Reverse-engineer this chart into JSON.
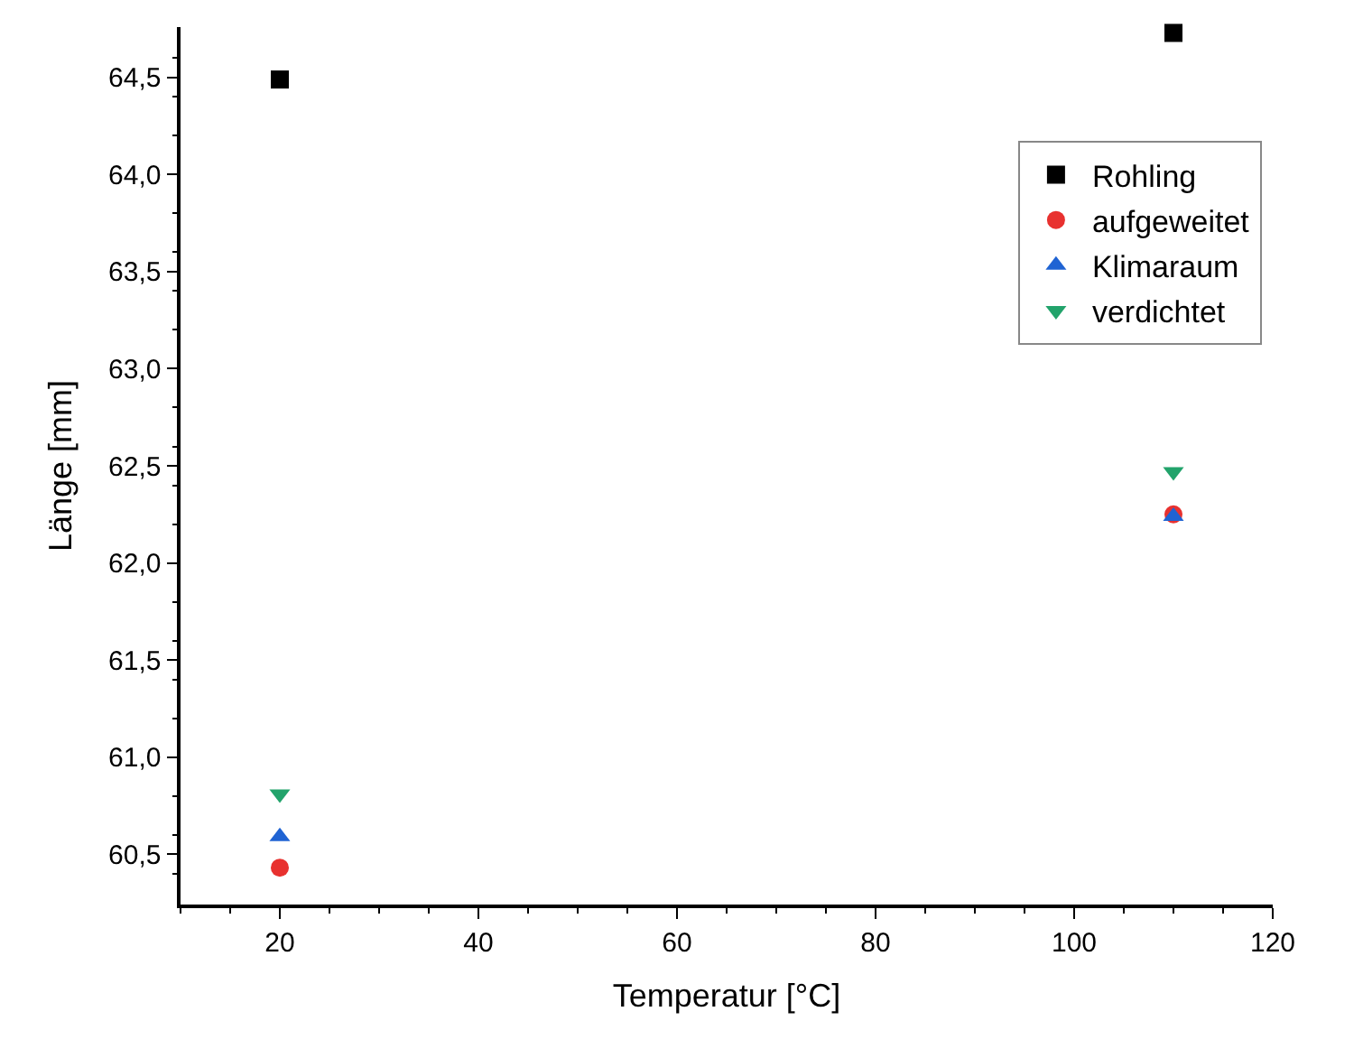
{
  "chart_data": {
    "type": "scatter",
    "xlabel": "Temperatur [°C]",
    "ylabel": "Länge [mm]",
    "x": [
      20,
      110
    ],
    "series": [
      {
        "name": "Rohling",
        "color": "#000000",
        "marker": "square",
        "values": [
          64.49,
          64.73
        ]
      },
      {
        "name": "aufgeweitet",
        "color": "#e8312f",
        "marker": "circle",
        "values": [
          60.43,
          62.25
        ]
      },
      {
        "name": "Klimaraum",
        "color": "#1f63d3",
        "marker": "triangle",
        "values": [
          60.59,
          62.24
        ]
      },
      {
        "name": "verdichtet",
        "color": "#22a36b",
        "marker": "triangle-down",
        "values": [
          60.81,
          62.47
        ]
      }
    ],
    "xlim": [
      10,
      120
    ],
    "xticks": [
      20,
      40,
      60,
      80,
      100,
      120
    ],
    "ylim": [
      60.24,
      64.76
    ],
    "yticks": [
      {
        "value": 60.5,
        "label": "60,5"
      },
      {
        "value": 61.0,
        "label": "61,0"
      },
      {
        "value": 61.5,
        "label": "61,5"
      },
      {
        "value": 62.0,
        "label": "62,0"
      },
      {
        "value": 62.5,
        "label": "62,5"
      },
      {
        "value": 63.0,
        "label": "63,0"
      },
      {
        "value": 63.5,
        "label": "63,5"
      },
      {
        "value": 64.0,
        "label": "64,0"
      },
      {
        "value": 64.5,
        "label": "64,5"
      }
    ],
    "legend": "top right"
  }
}
